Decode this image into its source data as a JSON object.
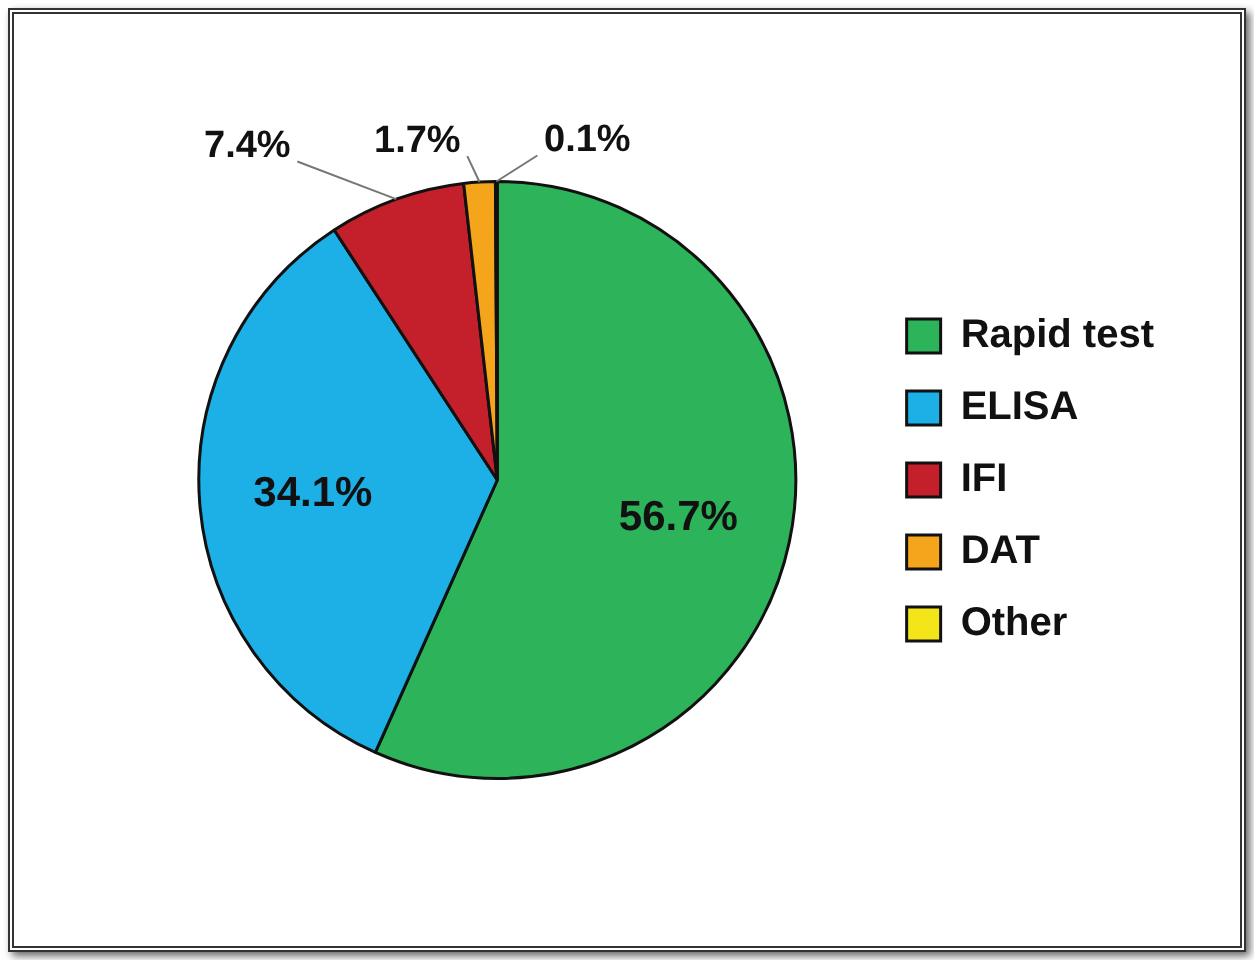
{
  "chart_data": {
    "type": "pie",
    "categories": [
      "Rapid test",
      "ELISA",
      "IFI",
      "DAT",
      "Other"
    ],
    "values": [
      56.7,
      34.1,
      7.4,
      1.7,
      0.1
    ],
    "colors": [
      "#2db35a",
      "#1cb0e6",
      "#c3202b",
      "#f5a51b",
      "#f3e51a"
    ],
    "value_labels": [
      "56.7%",
      "34.1%",
      "7.4%",
      "1.7%",
      "0.1%"
    ],
    "legend": "right"
  }
}
